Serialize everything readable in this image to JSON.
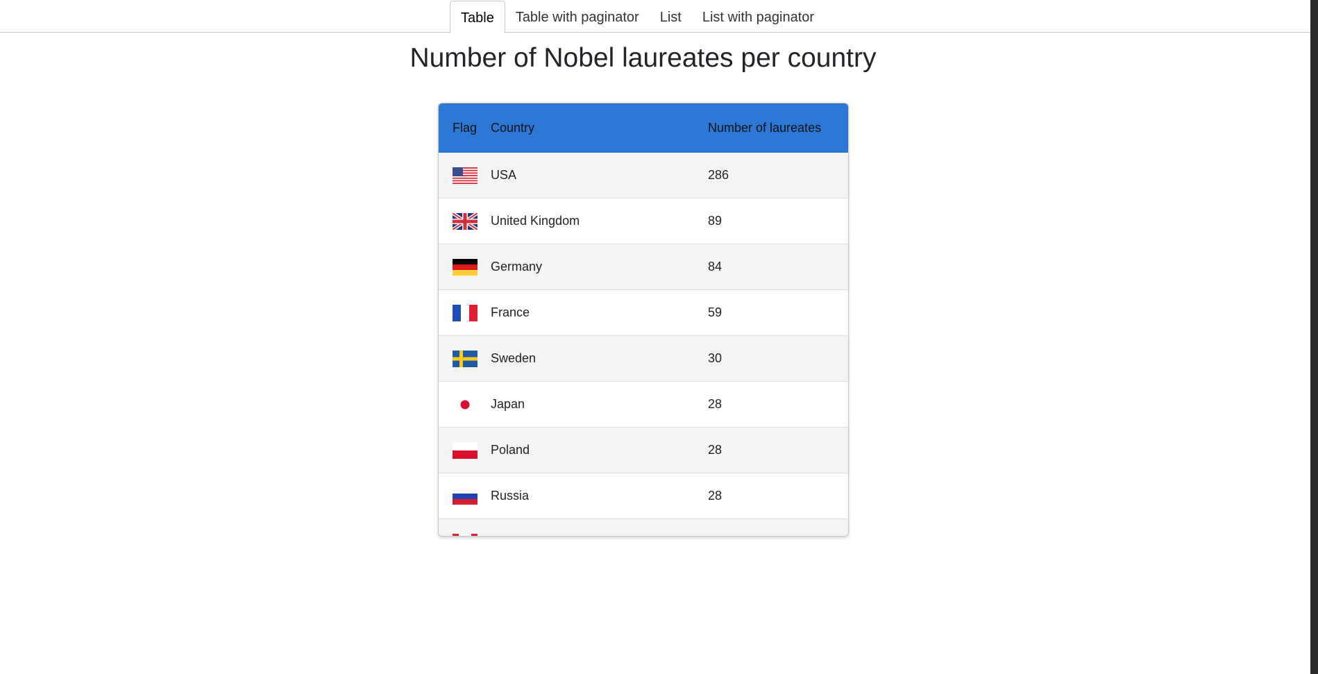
{
  "tabs": [
    {
      "label": "Table",
      "active": true
    },
    {
      "label": "Table with paginator",
      "active": false
    },
    {
      "label": "List",
      "active": false
    },
    {
      "label": "List with paginator",
      "active": false
    }
  ],
  "title": "Number of Nobel laureates per country",
  "table": {
    "headers": {
      "flag": "Flag",
      "country": "Country",
      "count": "Number of laureates"
    },
    "header_color": "#2d78d4",
    "rows": [
      {
        "flag": "us-flag-icon",
        "country": "USA",
        "count": "286"
      },
      {
        "flag": "uk-flag-icon",
        "country": "United Kingdom",
        "count": "89"
      },
      {
        "flag": "germany-flag-icon",
        "country": "Germany",
        "count": "84"
      },
      {
        "flag": "france-flag-icon",
        "country": "France",
        "count": "59"
      },
      {
        "flag": "sweden-flag-icon",
        "country": "Sweden",
        "count": "30"
      },
      {
        "flag": "japan-flag-icon",
        "country": "Japan",
        "count": "28"
      },
      {
        "flag": "poland-flag-icon",
        "country": "Poland",
        "count": "28"
      },
      {
        "flag": "russia-flag-icon",
        "country": "Russia",
        "count": "28"
      },
      {
        "flag": "canada-flag-icon",
        "country": "",
        "count": ""
      }
    ]
  }
}
